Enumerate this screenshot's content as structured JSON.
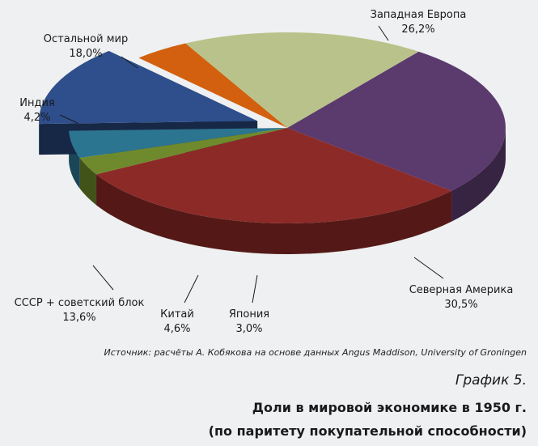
{
  "chart_data": {
    "type": "pie",
    "title": "Доли в мировой экономике в 1950 г.",
    "subtitle": "(по паритету покупательной способности)",
    "slices": [
      {
        "name": "Западная Европа",
        "value": 26.2,
        "label": "26,2%",
        "color": "#5b3a6e"
      },
      {
        "name": "Северная Америка",
        "value": 30.5,
        "label": "30,5%",
        "color": "#8c2a27"
      },
      {
        "name": "Япония",
        "value": 3.0,
        "label": "3,0%",
        "color": "#6e8a2c"
      },
      {
        "name": "Китай",
        "value": 4.6,
        "label": "4,6%",
        "color": "#2c7591"
      },
      {
        "name": "СССР + советский блок",
        "value": 13.6,
        "label": "13,6%",
        "color": "#2e4f8c"
      },
      {
        "name": "Индия",
        "value": 4.2,
        "label": "4,2%",
        "color": "#d2600e"
      },
      {
        "name": "Остальной мир",
        "value": 18.0,
        "label": "18,0%",
        "color": "#b9c28a"
      }
    ],
    "exploded": "СССР + советский блок",
    "legend": "none"
  },
  "source": "Источник: расчёты А. Кобякова на основе данных Angus Maddison, University of Groningen",
  "figure_number": "График 5.",
  "title_line1": "Доли в мировой экономике в 1950 г.",
  "title_line2": "(по паритету покупательной способности)"
}
